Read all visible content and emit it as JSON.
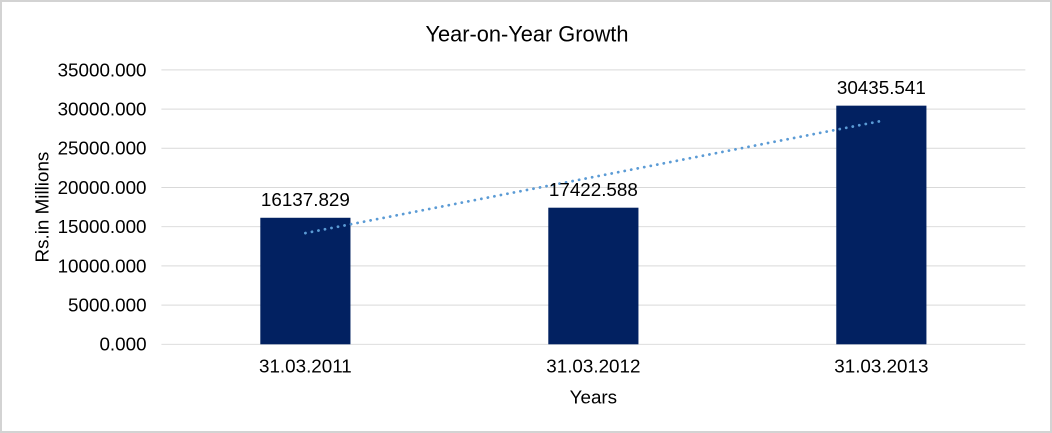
{
  "chart_data": {
    "type": "bar",
    "title": "Year-on-Year Growth",
    "xlabel": "Years",
    "ylabel": "Rs.in Millions",
    "categories": [
      "31.03.2011",
      "31.03.2012",
      "31.03.2013"
    ],
    "values": [
      16137.829,
      17422.588,
      30435.541
    ],
    "value_labels": [
      "16137.829",
      "17422.588",
      "30435.541"
    ],
    "ylim": [
      0,
      35000
    ],
    "ytick_step": 5000,
    "ytick_labels": [
      "0.000",
      "5000.000",
      "10000.000",
      "15000.000",
      "20000.000",
      "25000.000",
      "30000.000",
      "35000.000"
    ],
    "grid": true,
    "legend": "none",
    "trendline": {
      "type": "linear",
      "style": "dotted"
    },
    "colors": {
      "bar": "#022161",
      "trendline": "#5b9bd5",
      "gridline": "#d9d9d9",
      "text": "#000000",
      "background": "#ffffff",
      "border": "#d3d3d3"
    }
  }
}
